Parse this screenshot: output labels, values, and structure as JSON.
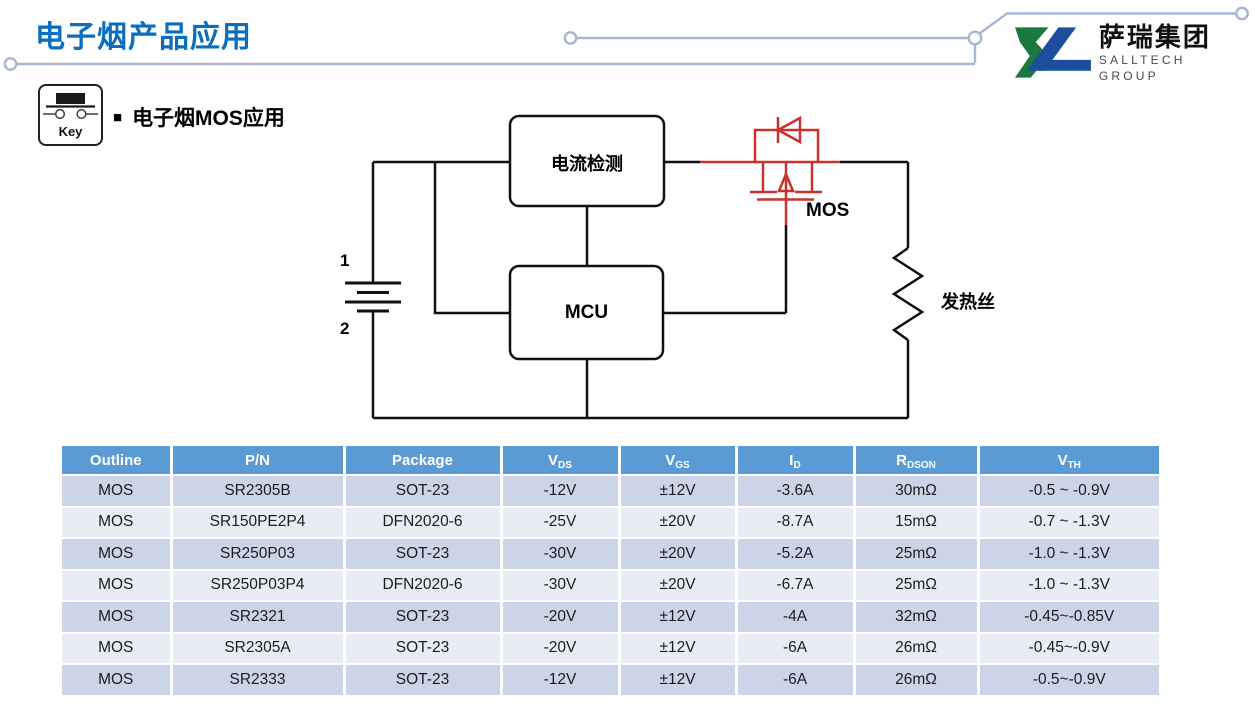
{
  "slide": {
    "title": "电子烟产品应用",
    "section_bullet": "■",
    "section_heading": "电子烟MOS应用",
    "key_label": "Key"
  },
  "logo": {
    "name_cn": "萨瑞集团",
    "name_en": "SALLTECH GROUP"
  },
  "diagram": {
    "current_sense_label": "电流检测",
    "mcu_label": "MCU",
    "mos_label": "MOS",
    "heater_label": "发热丝",
    "battery_pin1": "1",
    "battery_pin2": "2"
  },
  "table": {
    "headers": [
      {
        "main": "Outline",
        "sub": ""
      },
      {
        "main": "P/N",
        "sub": ""
      },
      {
        "main": "Package",
        "sub": ""
      },
      {
        "main": "V",
        "sub": "DS"
      },
      {
        "main": "V",
        "sub": "GS"
      },
      {
        "main": "I",
        "sub": "D"
      },
      {
        "main": "R",
        "sub": "DSON"
      },
      {
        "main": "V",
        "sub": "TH"
      }
    ],
    "rows": [
      [
        "MOS",
        "SR2305B",
        "SOT-23",
        "-12V",
        "±12V",
        "-3.6A",
        "30mΩ",
        "-0.5 ~ -0.9V"
      ],
      [
        "MOS",
        "SR150PE2P4",
        "DFN2020-6",
        "-25V",
        "±20V",
        "-8.7A",
        "15mΩ",
        "-0.7 ~ -1.3V"
      ],
      [
        "MOS",
        "SR250P03",
        "SOT-23",
        "-30V",
        "±20V",
        "-5.2A",
        "25mΩ",
        "-1.0 ~ -1.3V"
      ],
      [
        "MOS",
        "SR250P03P4",
        "DFN2020-6",
        "-30V",
        "±20V",
        "-6.7A",
        "25mΩ",
        "-1.0 ~ -1.3V"
      ],
      [
        "MOS",
        "SR2321",
        "SOT-23",
        "-20V",
        "±12V",
        "-4A",
        "32mΩ",
        "-0.45~-0.85V"
      ],
      [
        "MOS",
        "SR2305A",
        "SOT-23",
        "-20V",
        "±12V",
        "-6A",
        "26mΩ",
        "-0.45~-0.9V"
      ],
      [
        "MOS",
        "SR2333",
        "SOT-23",
        "-12V",
        "±12V",
        "-6A",
        "26mΩ",
        "-0.5~-0.9V"
      ]
    ]
  },
  "colors": {
    "title_blue": "#0a6ec0",
    "table_header_bg": "#5b9bd5",
    "table_row_odd": "#ccd5e8",
    "table_row_even": "#e9ecf4",
    "mos_red": "#c9302e",
    "wire_black": "#111111",
    "trace_blue": "#a9b5d6",
    "logo_green": "#19793f",
    "logo_blue": "#1d4e9e"
  }
}
